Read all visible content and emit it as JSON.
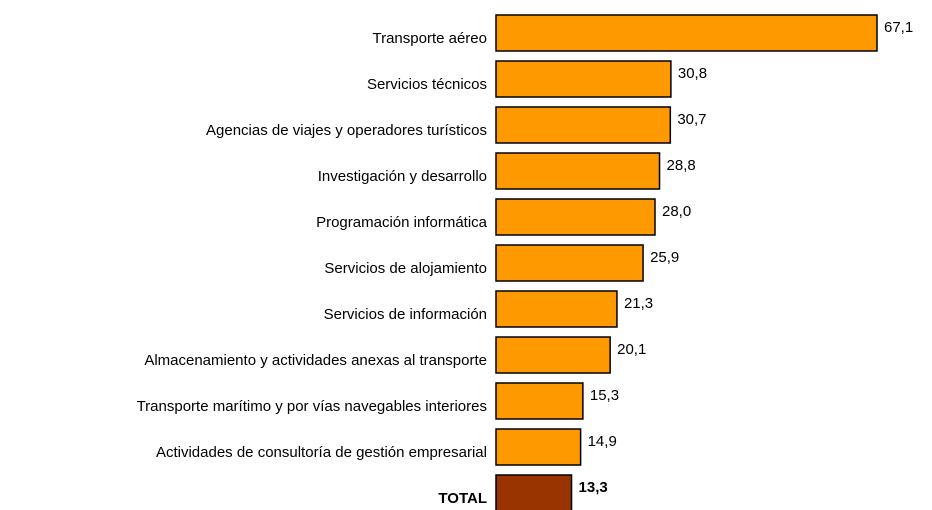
{
  "chart_data": {
    "type": "barh",
    "categories": [
      "Transporte aéreo",
      "Servicios técnicos",
      "Agencias de viajes y operadores turísticos",
      "Investigación y desarrollo",
      "Programación informática",
      "Servicios de alojamiento",
      "Servicios de información",
      "Almacenamiento y actividades anexas al transporte",
      "Transporte marítimo y por vías navegables interiores",
      "Actividades de consultoría de gestión empresarial",
      "TOTAL"
    ],
    "values": [
      67.1,
      30.8,
      30.7,
      28.8,
      28.0,
      25.9,
      21.3,
      20.1,
      15.3,
      14.9,
      13.3
    ],
    "value_labels": [
      "67,1",
      "30,8",
      "30,7",
      "28,8",
      "28,0",
      "25,9",
      "21,3",
      "20,1",
      "15,3",
      "14,9",
      "13,3"
    ],
    "colors": [
      "#ff9900",
      "#ff9900",
      "#ff9900",
      "#ff9900",
      "#ff9900",
      "#ff9900",
      "#ff9900",
      "#ff9900",
      "#ff9900",
      "#ff9900",
      "#993300"
    ]
  }
}
